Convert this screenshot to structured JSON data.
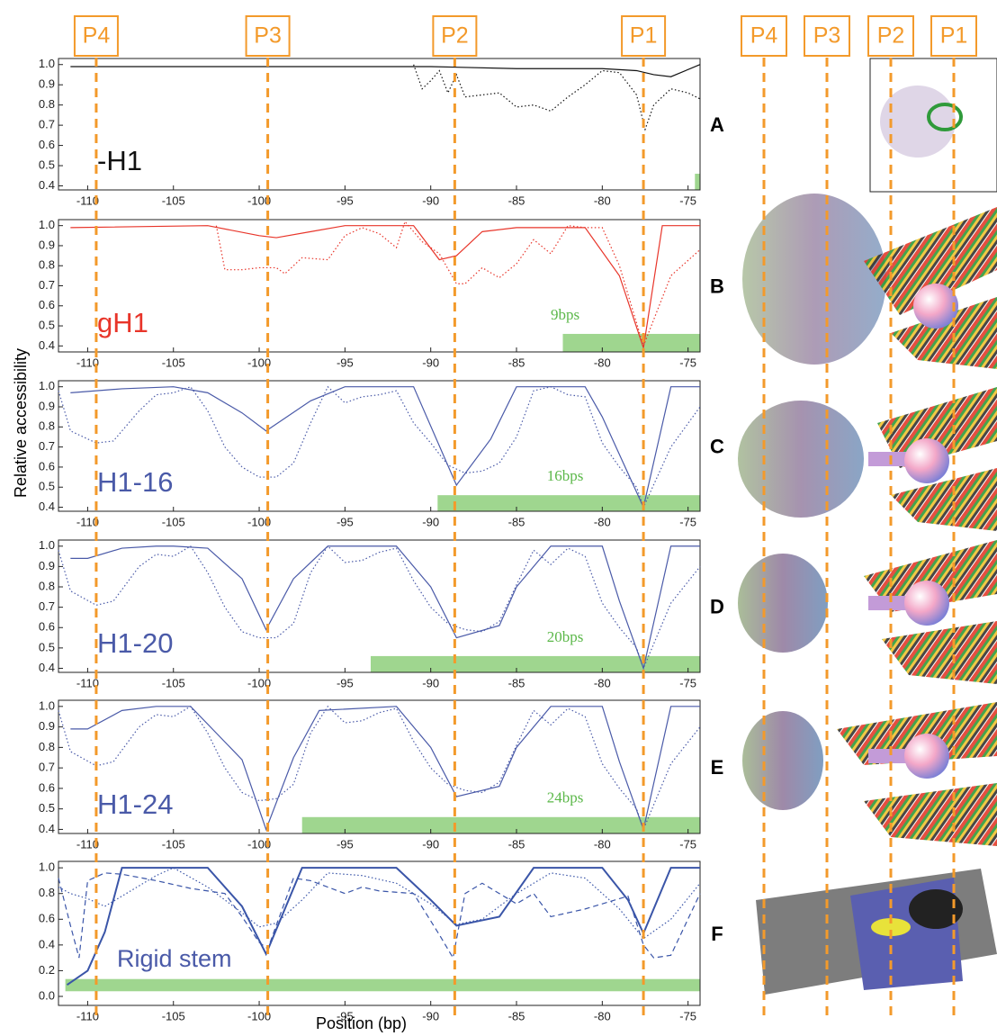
{
  "figure": {
    "ylabel": "Relative accessibility",
    "marker_color": "#f39a2b",
    "markers": [
      {
        "label": "P4",
        "position": -109.5
      },
      {
        "label": "P3",
        "position": -99.5
      },
      {
        "label": "P2",
        "position": -88.6
      },
      {
        "label": "P1",
        "position": -77.6
      }
    ]
  },
  "chart_data": [
    {
      "type": "line",
      "panel": "A",
      "label": "-H1",
      "label_color": "#111111",
      "xlim": [
        -111.7,
        -74.3
      ],
      "ylim": [
        0.38,
        1.03
      ],
      "xticks": [
        -110,
        -105,
        -100,
        -95,
        -90,
        -85,
        -80,
        -75
      ],
      "yticks": [
        0.4,
        0.5,
        0.6,
        0.7,
        0.8,
        0.9,
        {
          "value": 1,
          "label": "1.0"
        }
      ],
      "highlight": {
        "from": -74.6,
        "to": -74.3,
        "y": [
          0.38,
          0.46
        ],
        "color": "#9fd68f"
      },
      "series": [
        {
          "style": "solid",
          "color": "#111111",
          "x": [
            -111,
            -95,
            -90,
            -85,
            -80,
            -78,
            -77,
            -76,
            -74.3
          ],
          "values": [
            0.99,
            0.99,
            0.99,
            0.98,
            0.98,
            0.97,
            0.95,
            0.94,
            1.0
          ]
        },
        {
          "style": "dotted",
          "color": "#111111",
          "x": [
            -91,
            -90.5,
            -90,
            -89.5,
            -89,
            -88.5,
            -88,
            -87,
            -86,
            -85,
            -84,
            -83,
            -82,
            -81,
            -80,
            -79,
            -78,
            -77.5,
            -77,
            -76,
            -75,
            -74.3
          ],
          "values": [
            1.0,
            0.88,
            0.92,
            0.97,
            0.86,
            0.95,
            0.84,
            0.85,
            0.86,
            0.79,
            0.8,
            0.77,
            0.84,
            0.9,
            0.97,
            0.96,
            0.85,
            0.68,
            0.8,
            0.88,
            0.86,
            0.83
          ]
        }
      ]
    },
    {
      "type": "line",
      "panel": "B",
      "label": "gH1",
      "label_color": "#e8352a",
      "xlim": [
        -111.7,
        -74.3
      ],
      "ylim": [
        0.37,
        1.03
      ],
      "xticks": [
        -110,
        -105,
        -100,
        -95,
        -90,
        -85,
        -80,
        -75
      ],
      "yticks": [
        0.4,
        0.5,
        0.6,
        0.7,
        0.8,
        0.9,
        {
          "value": 1,
          "label": "1.0"
        }
      ],
      "highlight": {
        "from": -82.3,
        "to": -74.3,
        "y": [
          0.37,
          0.46
        ],
        "label": "9bps",
        "color": "#9fd68f"
      },
      "series": [
        {
          "style": "solid",
          "color": "#e8352a",
          "x": [
            -111,
            -103,
            -100,
            -99,
            -97,
            -95,
            -91,
            -89.5,
            -88.5,
            -87,
            -85,
            -81,
            -79,
            -77.6,
            -76.5,
            -74.3
          ],
          "values": [
            0.99,
            1.0,
            0.95,
            0.94,
            0.97,
            1.0,
            1.0,
            0.83,
            0.85,
            0.97,
            0.99,
            0.99,
            0.75,
            0.39,
            1.0,
            1.0
          ]
        },
        {
          "style": "dotted",
          "color": "#e8352a",
          "x": [
            -102.5,
            -102,
            -101,
            -100,
            -99,
            -98.5,
            -97.5,
            -96,
            -95,
            -94,
            -93,
            -92,
            -91.5,
            -90.5,
            -89.5,
            -88.5,
            -88,
            -87,
            -86,
            -85,
            -84,
            -83,
            -82,
            -81,
            -80,
            -79,
            -77.6,
            -76,
            -74.3
          ],
          "values": [
            1.0,
            0.78,
            0.78,
            0.79,
            0.79,
            0.76,
            0.84,
            0.83,
            0.95,
            0.99,
            0.96,
            0.89,
            1.02,
            0.92,
            0.86,
            0.71,
            0.71,
            0.79,
            0.74,
            0.81,
            0.93,
            0.86,
            1.0,
            0.99,
            0.99,
            0.8,
            0.4,
            0.75,
            0.88
          ]
        }
      ]
    },
    {
      "type": "line",
      "panel": "C",
      "label": "H1-16",
      "label_color": "#4a5aa8",
      "xlim": [
        -111.7,
        -74.3
      ],
      "ylim": [
        0.38,
        1.03
      ],
      "xticks": [
        -110,
        -105,
        -100,
        -95,
        -90,
        -85,
        -80,
        -75
      ],
      "yticks": [
        0.4,
        0.5,
        0.6,
        0.7,
        0.8,
        0.9,
        {
          "value": 1,
          "label": "1.0"
        }
      ],
      "highlight": {
        "from": -89.6,
        "to": -74.3,
        "y": [
          0.38,
          0.46
        ],
        "label": "16bps",
        "color": "#9fd68f"
      },
      "series": [
        {
          "style": "solid",
          "color": "#4a5aa8",
          "x": [
            -111,
            -108,
            -105,
            -103,
            -101,
            -99.6,
            -97,
            -95,
            -91,
            -88.5,
            -86.5,
            -85,
            -81,
            -80,
            -77.6,
            -76,
            -74.3
          ],
          "values": [
            0.97,
            0.99,
            1.0,
            0.97,
            0.87,
            0.78,
            0.93,
            1.0,
            1.0,
            0.51,
            0.74,
            1.0,
            1.0,
            0.85,
            0.4,
            1.0,
            1.0
          ]
        },
        {
          "style": "dotted",
          "color": "#4a5aa8",
          "x": [
            -111.7,
            -111,
            -109.5,
            -108.5,
            -107,
            -106,
            -105,
            -104,
            -103,
            -102,
            -101,
            -100,
            -99,
            -98,
            -97,
            -96,
            -95,
            -94,
            -93,
            -92,
            -91,
            -90,
            -89,
            -88,
            -87,
            -86,
            -85,
            -84,
            -83,
            -82,
            -81,
            -80,
            -79,
            -78,
            -77.6,
            -76,
            -74.3
          ],
          "values": [
            0.98,
            0.78,
            0.72,
            0.73,
            0.88,
            0.96,
            0.97,
            1.0,
            0.88,
            0.7,
            0.6,
            0.55,
            0.55,
            0.62,
            0.82,
            1.0,
            0.92,
            0.95,
            0.96,
            0.98,
            0.82,
            0.72,
            0.61,
            0.57,
            0.58,
            0.62,
            0.75,
            0.98,
            1.0,
            0.96,
            0.95,
            0.72,
            0.6,
            0.5,
            0.4,
            0.7,
            0.9
          ]
        }
      ]
    },
    {
      "type": "line",
      "panel": "D",
      "label": "H1-20",
      "label_color": "#4a5aa8",
      "xlim": [
        -111.7,
        -74.3
      ],
      "ylim": [
        0.38,
        1.03
      ],
      "xticks": [
        -110,
        -105,
        -100,
        -95,
        -90,
        -85,
        -80,
        -75
      ],
      "yticks": [
        0.4,
        0.5,
        0.6,
        0.7,
        0.8,
        0.9,
        {
          "value": 1,
          "label": "1.0"
        }
      ],
      "highlight": {
        "from": -93.5,
        "to": -74.3,
        "y": [
          0.38,
          0.46
        ],
        "label": "20bps",
        "color": "#9fd68f"
      },
      "series": [
        {
          "style": "solid",
          "color": "#4a5aa8",
          "x": [
            -111,
            -110,
            -108,
            -106,
            -105,
            -103,
            -101,
            -99.6,
            -98,
            -96,
            -92,
            -90,
            -88.5,
            -86,
            -85,
            -83,
            -80,
            -79,
            -77.6,
            -76,
            -74.3
          ],
          "values": [
            0.94,
            0.94,
            0.99,
            1.0,
            1.0,
            0.99,
            0.84,
            0.59,
            0.84,
            1.0,
            1.0,
            0.8,
            0.55,
            0.61,
            0.8,
            1.0,
            1.0,
            0.73,
            0.4,
            1.0,
            1.0
          ]
        },
        {
          "style": "dotted",
          "color": "#4a5aa8",
          "x": [
            -111.7,
            -111,
            -109.5,
            -108.5,
            -107,
            -106,
            -105,
            -104,
            -103,
            -102,
            -101,
            -100,
            -99,
            -98,
            -97,
            -96,
            -95,
            -94,
            -93,
            -92,
            -91,
            -90,
            -89,
            -88,
            -87,
            -86,
            -85,
            -84,
            -83,
            -82,
            -81,
            -80,
            -79,
            -78,
            -77.6,
            -76,
            -74.3
          ],
          "values": [
            0.98,
            0.78,
            0.71,
            0.73,
            0.9,
            0.96,
            0.95,
            1.0,
            0.87,
            0.7,
            0.58,
            0.55,
            0.55,
            0.62,
            0.87,
            1.0,
            0.92,
            0.93,
            0.97,
            0.99,
            0.83,
            0.7,
            0.62,
            0.59,
            0.58,
            0.63,
            0.81,
            0.98,
            0.91,
            0.99,
            0.95,
            0.72,
            0.6,
            0.5,
            0.4,
            0.72,
            0.9
          ]
        }
      ]
    },
    {
      "type": "line",
      "panel": "E",
      "label": "H1-24",
      "label_color": "#4a5aa8",
      "xlim": [
        -111.7,
        -74.3
      ],
      "ylim": [
        0.38,
        1.03
      ],
      "xticks": [
        -110,
        -105,
        -100,
        -95,
        -90,
        -85,
        -80,
        -75
      ],
      "yticks": [
        0.4,
        0.5,
        0.6,
        0.7,
        0.8,
        0.9,
        {
          "value": 1,
          "label": "1.0"
        }
      ],
      "highlight": {
        "from": -97.5,
        "to": -74.3,
        "y": [
          0.38,
          0.46
        ],
        "label": "24bps",
        "color": "#9fd68f"
      },
      "series": [
        {
          "style": "solid",
          "color": "#4a5aa8",
          "x": [
            -111,
            -110,
            -108,
            -106,
            -104,
            -101,
            -99.6,
            -98,
            -96.5,
            -92,
            -90,
            -88.5,
            -86,
            -85,
            -83,
            -80,
            -79,
            -77.6,
            -76,
            -74.3
          ],
          "values": [
            0.89,
            0.89,
            0.98,
            1.0,
            1.0,
            0.74,
            0.4,
            0.75,
            0.98,
            1.0,
            0.8,
            0.56,
            0.61,
            0.8,
            1.0,
            1.0,
            0.73,
            0.4,
            1.0,
            1.0
          ]
        },
        {
          "style": "dotted",
          "color": "#4a5aa8",
          "x": [
            -111.7,
            -111,
            -109.5,
            -108.5,
            -107,
            -106,
            -105,
            -104,
            -103,
            -102,
            -101,
            -100,
            -99,
            -98,
            -97,
            -96,
            -95,
            -94,
            -93,
            -92,
            -91,
            -90,
            -89,
            -88,
            -87,
            -86,
            -85,
            -84,
            -83,
            -82,
            -81,
            -80,
            -79,
            -78,
            -77.6,
            -76,
            -74.3
          ],
          "values": [
            0.98,
            0.78,
            0.71,
            0.73,
            0.9,
            0.96,
            0.95,
            1.0,
            0.87,
            0.7,
            0.58,
            0.54,
            0.55,
            0.62,
            0.87,
            1.0,
            0.92,
            0.93,
            0.97,
            0.99,
            0.83,
            0.7,
            0.62,
            0.59,
            0.58,
            0.63,
            0.81,
            0.98,
            0.91,
            0.99,
            0.95,
            0.72,
            0.6,
            0.5,
            0.4,
            0.72,
            0.9
          ]
        }
      ]
    },
    {
      "type": "line",
      "panel": "F",
      "label": "Rigid stem",
      "label_color": "#4a5aa8",
      "xlabel": "Position (bp)",
      "xlim": [
        -111.7,
        -74.3
      ],
      "ylim": [
        -0.07,
        1.05
      ],
      "xticks": [
        -110,
        -105,
        -100,
        -95,
        -90,
        -85,
        -80,
        -75
      ],
      "yticks": [
        {
          "value": 0,
          "label": "0.0"
        },
        0.2,
        0.4,
        0.6,
        0.8,
        {
          "value": 1,
          "label": "1.0"
        }
      ],
      "highlight": {
        "from": -111.3,
        "to": -74.3,
        "y": [
          0.04,
          0.135
        ],
        "color": "#9fd68f"
      },
      "series": [
        {
          "style": "solid-thick",
          "color": "#3a55a8",
          "x": [
            -111.2,
            -110,
            -109,
            -108,
            -106,
            -103,
            -101,
            -99.6,
            -97.5,
            -96,
            -92,
            -90,
            -88.5,
            -86,
            -84,
            -80,
            -78.5,
            -77.6,
            -76,
            -75,
            -74.3
          ],
          "values": [
            0.09,
            0.2,
            0.5,
            1.0,
            1.0,
            1.0,
            0.7,
            0.33,
            1.0,
            1.0,
            1.0,
            0.75,
            0.55,
            0.62,
            1.0,
            1.0,
            0.75,
            0.49,
            1.0,
            1.0,
            1.0
          ]
        },
        {
          "style": "dotted",
          "color": "#3a55a8",
          "x": [
            -111.7,
            -111,
            -110,
            -109,
            -108,
            -106,
            -105,
            -103,
            -101,
            -100,
            -99,
            -97.5,
            -96,
            -94,
            -92,
            -90,
            -88.5,
            -87,
            -85,
            -83,
            -81,
            -79,
            -77.6,
            -76,
            -74.3
          ],
          "values": [
            0.85,
            0.8,
            0.76,
            0.7,
            0.78,
            0.94,
            1.0,
            0.85,
            0.65,
            0.54,
            0.57,
            0.75,
            0.96,
            0.94,
            0.88,
            0.72,
            0.56,
            0.6,
            0.8,
            0.96,
            0.92,
            0.68,
            0.45,
            0.6,
            0.88
          ]
        },
        {
          "style": "dashed",
          "color": "#3a55a8",
          "x": [
            -111.7,
            -111,
            -110.5,
            -110,
            -109,
            -108,
            -106,
            -104,
            -102,
            -101,
            -100,
            -99.5,
            -98,
            -97,
            -95,
            -94,
            -93,
            -91,
            -89.5,
            -88.7,
            -88,
            -87,
            -86,
            -85,
            -84,
            -83,
            -81,
            -80,
            -78.5,
            -77.6,
            -77,
            -76,
            -74.3
          ],
          "values": [
            0.92,
            0.55,
            0.3,
            0.9,
            0.96,
            0.95,
            0.9,
            0.84,
            0.8,
            0.62,
            0.42,
            0.37,
            0.92,
            0.9,
            0.8,
            0.85,
            0.82,
            0.8,
            0.48,
            0.3,
            0.8,
            0.88,
            0.8,
            0.72,
            0.8,
            0.62,
            0.68,
            0.72,
            0.78,
            0.4,
            0.3,
            0.32,
            0.8
          ]
        }
      ]
    }
  ]
}
